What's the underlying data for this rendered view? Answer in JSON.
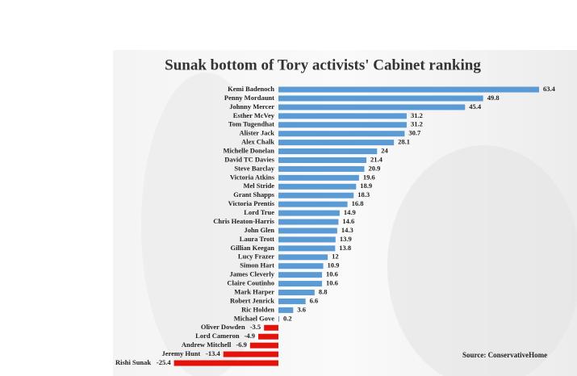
{
  "chart_data": {
    "type": "bar",
    "orientation": "horizontal",
    "title": "Sunak bottom of Tory activists' Cabinet ranking",
    "source": "Source: ConservativeHome",
    "categories": [
      "Kemi Badenoch",
      "Penny Mordaunt",
      "Johnny Mercer",
      "Esther McVey",
      "Tom Tugendhat",
      "Alister Jack",
      "Alex Chalk",
      "Michelle Donelan",
      "David TC Davies",
      "Steve Barclay",
      "Victoria Atkins",
      "Mel Stride",
      "Grant Shapps",
      "Victoria Prentis",
      "Lord True",
      "Chris Heaton-Harris",
      "John Glen",
      "Laura Trott",
      "Gillian Keegan",
      "Lucy Frazer",
      "Simon Hart",
      "James Cleverly",
      "Claire Coutinho",
      "Mark Harper",
      "Robert Jenrick",
      "Ric Holden",
      "Michael Gove",
      "Oliver Dowden",
      "Lord Cameron",
      "Andrew Mitchell",
      "Jeremy Hunt",
      "Rishi Sunak"
    ],
    "values": [
      63.4,
      49.8,
      45.4,
      31.2,
      31.2,
      30.7,
      28.1,
      24,
      21.4,
      20.9,
      19.6,
      18.9,
      18.3,
      16.8,
      14.9,
      14.6,
      14.3,
      13.9,
      13.8,
      12,
      10.9,
      10.6,
      10.6,
      8.8,
      6.6,
      3.6,
      0.2,
      -3.5,
      -4.9,
      -6.9,
      -13.4,
      -25.4
    ],
    "color": "#5b9bd5",
    "negative_color": "#e3120b"
  }
}
